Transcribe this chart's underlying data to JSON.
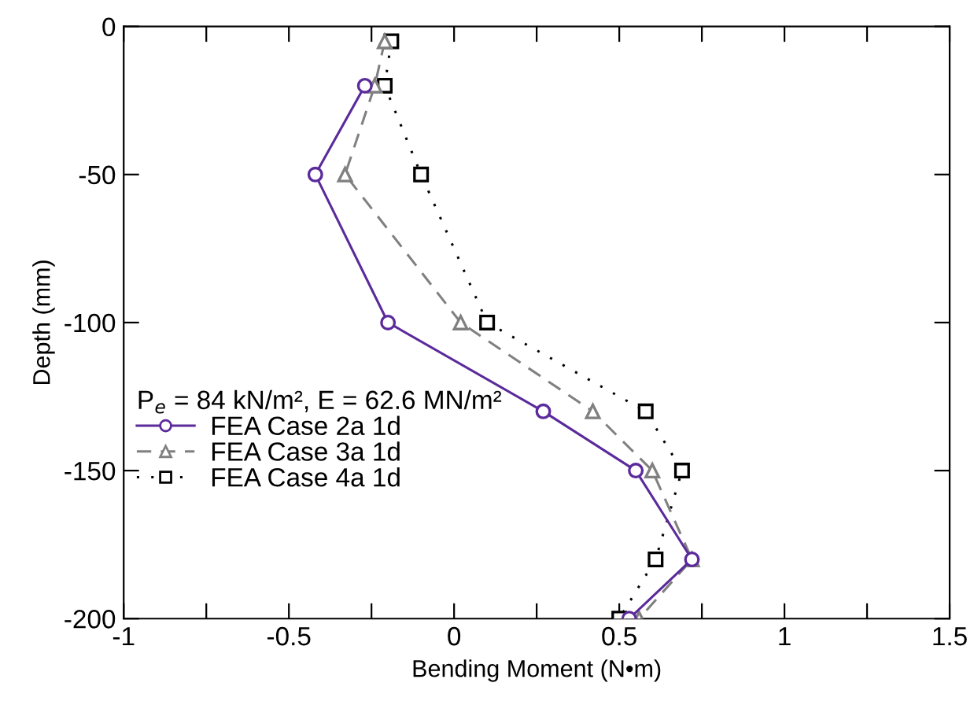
{
  "chart_data": {
    "type": "line",
    "xlabel": "Bending Moment (N•m)",
    "ylabel": "Depth (mm)",
    "legend_title": "P$_{e}$ = 84 kN/m², E = 62.6 MN/m²",
    "legend": "left",
    "xlim": [
      -1,
      1.5
    ],
    "ylim": [
      -200,
      0
    ],
    "xticks": [
      -1,
      {
        "value": -0.75,
        "label": null
      },
      -0.5,
      {
        "value": -0.25,
        "label": null
      },
      0,
      {
        "value": 0.25,
        "label": null
      },
      0.5,
      {
        "value": 0.75,
        "label": null
      },
      1,
      {
        "value": 1.25,
        "label": null
      },
      1.5
    ],
    "yticks": [
      -200,
      -150,
      -100,
      -50,
      0
    ],
    "series": [
      {
        "name": "FEA Case 2a 1d",
        "color": "#5b2a9b",
        "marker": "circle",
        "line_style": "solid",
        "x": [
          null,
          -0.27,
          -0.42,
          -0.2,
          0.27,
          0.55,
          0.72,
          0.53
        ],
        "values": [
          null,
          -20,
          -50,
          -100,
          -130,
          -150,
          -180,
          -200
        ]
      },
      {
        "name": "FEA Case 3a 1d",
        "color": "#808080",
        "marker": "triangle",
        "line_style": "dashed",
        "x": [
          -0.21,
          -0.24,
          -0.33,
          0.02,
          0.42,
          0.6,
          0.72,
          0.56
        ],
        "values": [
          -5,
          -20,
          -50,
          -100,
          -130,
          -150,
          -180,
          -200
        ]
      },
      {
        "name": "FEA Case 4a 1d",
        "color": "#000000",
        "marker": "square",
        "line_style": "dotted",
        "x": [
          -0.19,
          -0.21,
          -0.1,
          0.1,
          0.58,
          0.69,
          0.61,
          0.5
        ],
        "values": [
          -5,
          -20,
          -50,
          -100,
          -130,
          -150,
          -180,
          -200
        ]
      }
    ]
  }
}
